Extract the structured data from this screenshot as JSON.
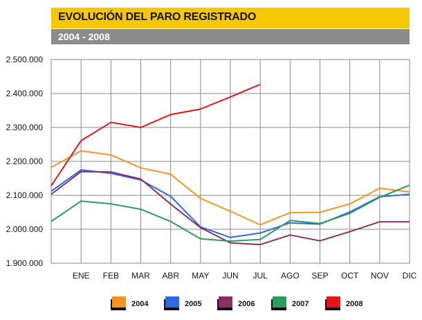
{
  "header": {
    "title": "EVOLUCIÓN DEL PARO REGISTRADO",
    "subtitle": "2004 - 2008"
  },
  "chart_data": {
    "type": "line",
    "categories": [
      "",
      "ENE",
      "FEB",
      "MAR",
      "ABR",
      "MAY",
      "JUN",
      "JUL",
      "AGO",
      "SEP",
      "OCT",
      "NOV",
      "DIC"
    ],
    "y_tick_labels": [
      "1.900.000",
      "2.000.000",
      "2.100.000",
      "2.200.000",
      "2.300.000",
      "2.400.000",
      "2.500.000"
    ],
    "ylim": [
      1900000,
      2500000
    ],
    "grid": true,
    "legend_position": "bottom",
    "series": [
      {
        "name": "2004",
        "color": "#f7941d",
        "values": [
          2182000,
          2231000,
          2219000,
          2181000,
          2162000,
          2091000,
          2053000,
          2013000,
          2049000,
          2050000,
          2075000,
          2121000,
          2110000
        ]
      },
      {
        "name": "2005",
        "color": "#2f67e6",
        "values": [
          2112000,
          2175000,
          2165000,
          2145000,
          2097000,
          2007000,
          1976000,
          1989000,
          2019000,
          2015000,
          2051000,
          2096000,
          2103000
        ]
      },
      {
        "name": "2006",
        "color": "#8b2f62",
        "values": [
          2103000,
          2170000,
          2169000,
          2148000,
          2074000,
          2005000,
          1960000,
          1955000,
          1983000,
          1966000,
          1993000,
          2022000,
          2022000
        ]
      },
      {
        "name": "2007",
        "color": "#2e9a5c",
        "values": [
          2023000,
          2083000,
          2075000,
          2059000,
          2023000,
          1972000,
          1965000,
          1970000,
          2026000,
          2017000,
          2047000,
          2094000,
          2130000
        ]
      },
      {
        "name": "2008",
        "color": "#e8141b",
        "values": [
          2128000,
          2261000,
          2315000,
          2300000,
          2338000,
          2354000,
          2390000,
          2427000,
          null,
          null,
          null,
          null,
          null
        ]
      }
    ]
  }
}
